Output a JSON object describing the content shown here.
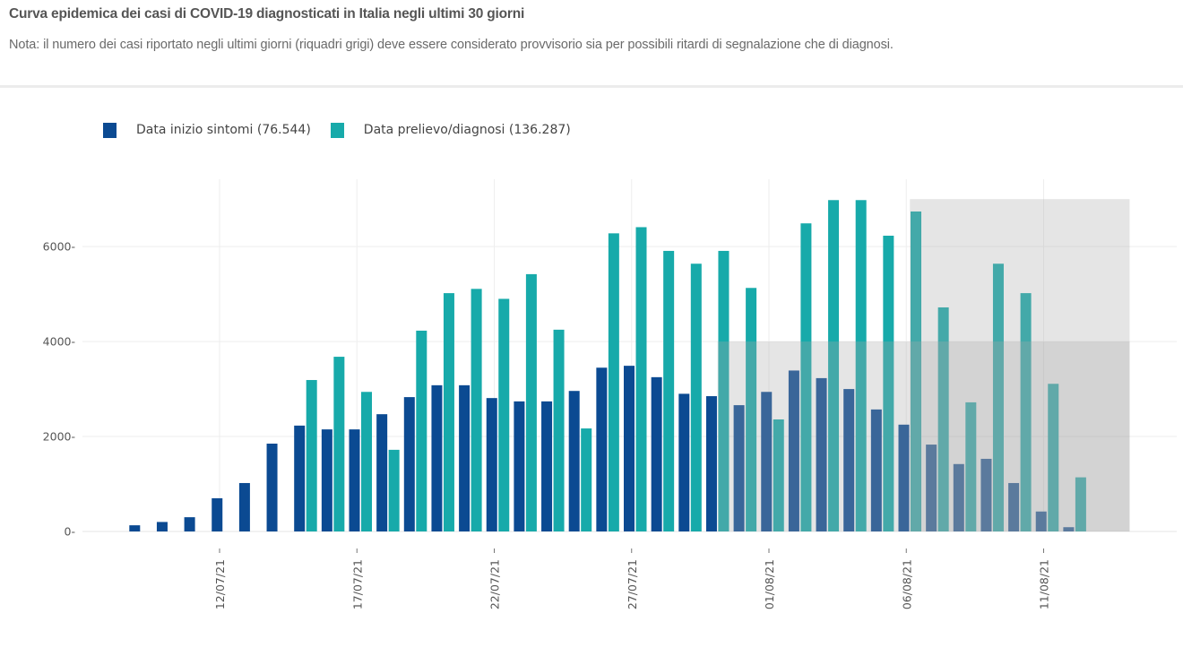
{
  "header": {
    "title": "Curva epidemica dei casi di COVID-19 diagnosticati in Italia negli ultimi 30 giorni",
    "note": "Nota: il numero dei casi riportato negli ultimi giorni (riquadri grigi) deve essere considerato provvisorio sia per possibili ritardi di segnalazione che di diagnosi."
  },
  "legend": [
    {
      "label": "Data inizio sintomi (76.544)",
      "color": "#0b4a92"
    },
    {
      "label": "Data prelievo/diagnosi (136.287)",
      "color": "#17aaaa"
    }
  ],
  "chart_data": {
    "type": "bar",
    "title": "Curva epidemica dei casi di COVID-19 diagnosticati in Italia negli ultimi 30 giorni",
    "xlabel": "",
    "ylabel": "",
    "ylim": [
      0,
      7300
    ],
    "yticks": [
      0,
      2000,
      4000,
      6000
    ],
    "ytick_labels": [
      "0",
      "2000",
      "4000",
      "6000"
    ],
    "xtick_labels": [
      "12/07/21",
      "17/07/21",
      "22/07/21",
      "27/07/21",
      "01/08/21",
      "06/08/21",
      "11/08/21"
    ],
    "grid": true,
    "legend_position": "top-left",
    "categories": [
      "09/07/21",
      "10/07/21",
      "11/07/21",
      "12/07/21",
      "13/07/21",
      "14/07/21",
      "15/07/21",
      "16/07/21",
      "17/07/21",
      "18/07/21",
      "19/07/21",
      "20/07/21",
      "21/07/21",
      "22/07/21",
      "23/07/21",
      "24/07/21",
      "25/07/21",
      "26/07/21",
      "27/07/21",
      "28/07/21",
      "29/07/21",
      "30/07/21",
      "31/07/21",
      "01/08/21",
      "02/08/21",
      "03/08/21",
      "04/08/21",
      "05/08/21",
      "06/08/21",
      "07/08/21",
      "08/08/21",
      "09/08/21",
      "10/08/21",
      "11/08/21",
      "12/08/21"
    ],
    "series": [
      {
        "name": "Data inizio sintomi (76.544)",
        "color": "#0b4a92",
        "values": [
          130,
          200,
          300,
          700,
          1020,
          1850,
          2230,
          2150,
          2150,
          2470,
          2830,
          3080,
          3080,
          2810,
          2740,
          2740,
          2960,
          3450,
          3490,
          3250,
          2900,
          2850,
          2660,
          2940,
          3390,
          3230,
          3000,
          2570,
          2250,
          1830,
          1420,
          1530,
          1020,
          420,
          90
        ]
      },
      {
        "name": "Data prelievo/diagnosi (136.287)",
        "color": "#17aaaa",
        "values": [
          null,
          null,
          null,
          null,
          null,
          null,
          3190,
          3680,
          2940,
          1720,
          4230,
          5020,
          5110,
          4900,
          5420,
          4250,
          2170,
          6280,
          6410,
          5910,
          5640,
          5910,
          5130,
          2360,
          6490,
          6980,
          6980,
          6230,
          6740,
          4720,
          2720,
          5640,
          5020,
          3110,
          1140
        ]
      }
    ],
    "annotations": [
      {
        "type": "shaded-region",
        "meaning": "provisional data (riquadri grigi)",
        "x0": "30/07/21",
        "x1": "14/08/21",
        "y0": 0,
        "y1": 4000
      },
      {
        "type": "shaded-region",
        "meaning": "provisional data (riquadri grigi)",
        "x0": "06/08/21",
        "x1": "14/08/21",
        "y0": 0,
        "y1": 7000
      }
    ]
  }
}
